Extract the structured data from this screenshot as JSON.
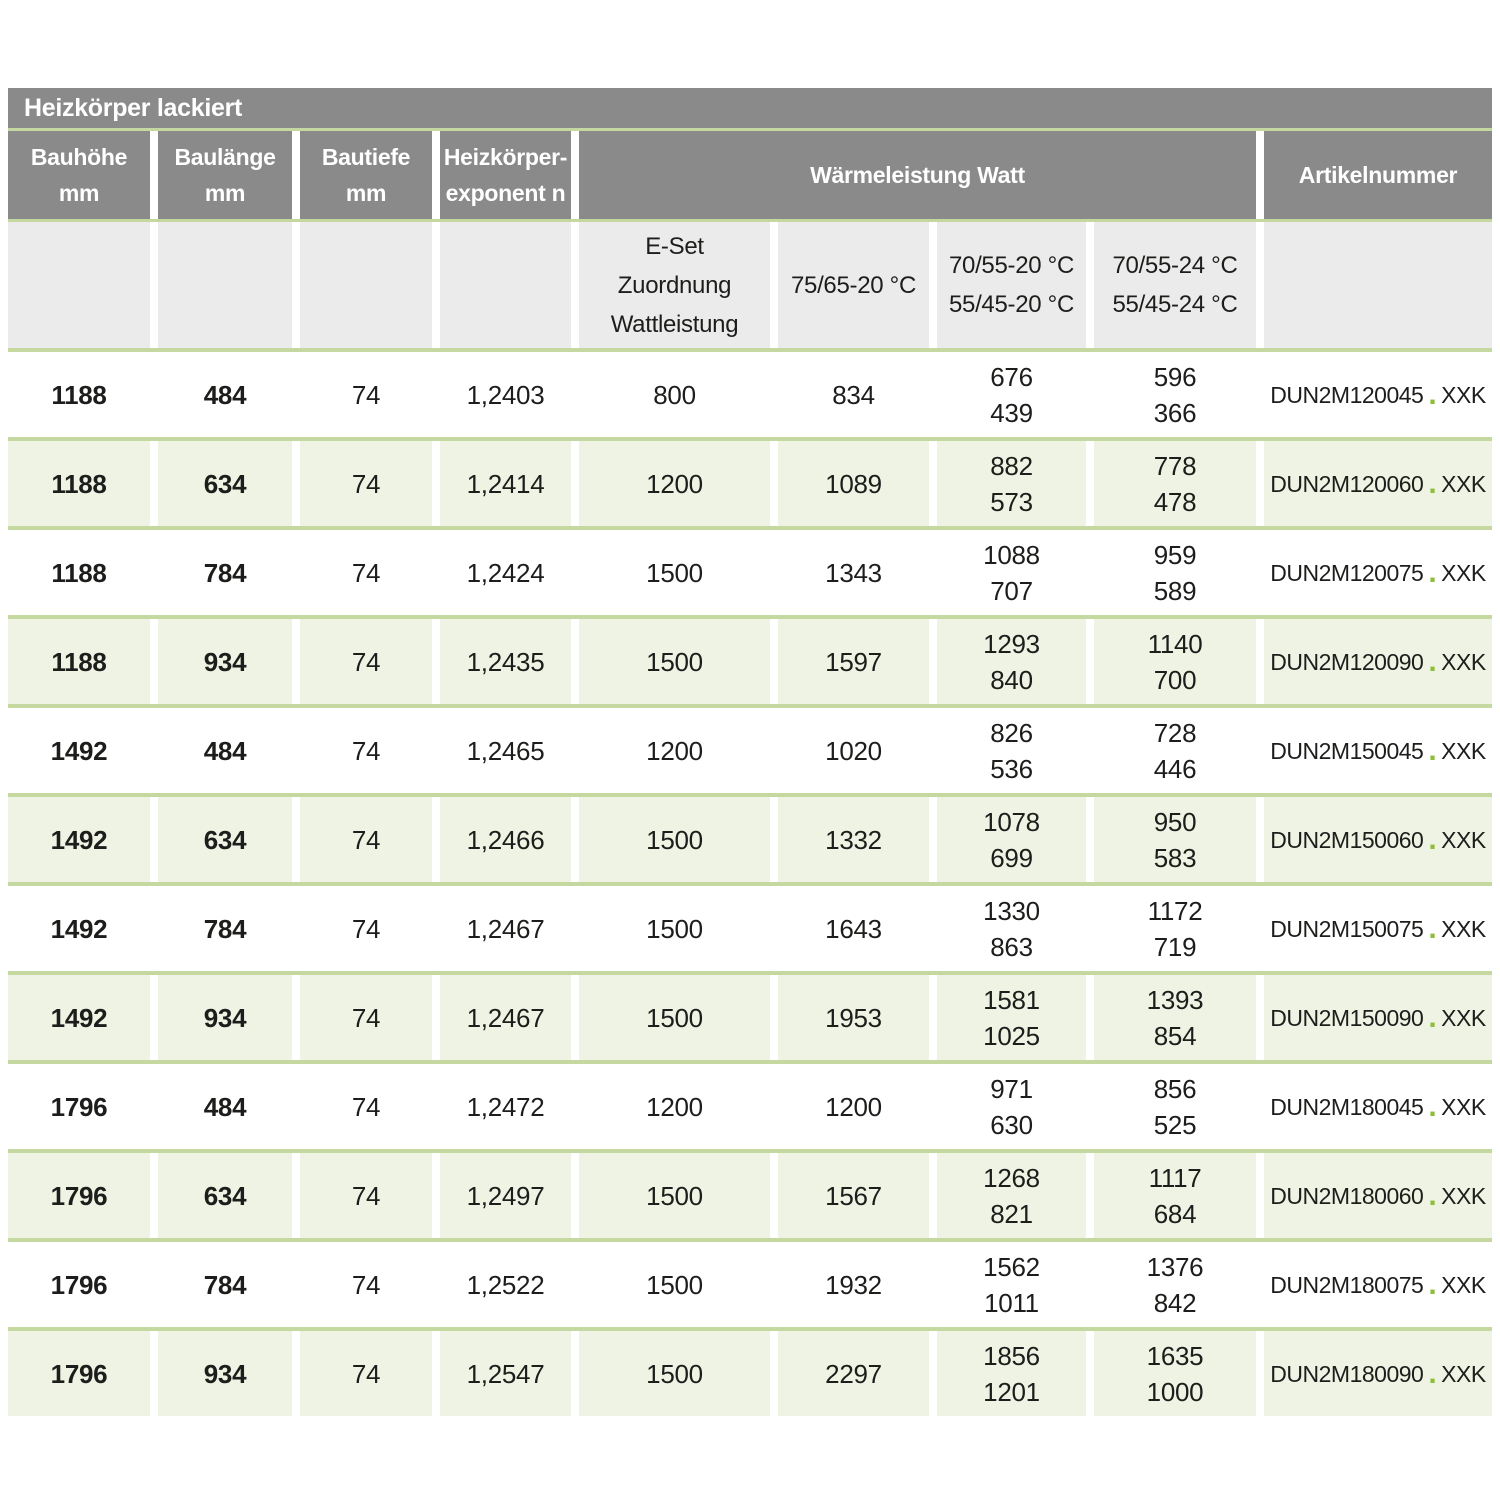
{
  "title": "Heizkörper lackiert",
  "colors": {
    "header_gray": "#8a8a8a",
    "subheader_gray": "#ebebeb",
    "row_white": "#ffffff",
    "row_green": "#eff3e4",
    "separator_green": "#c5d89f",
    "article_dot_green": "#8fbe3e",
    "text": "#1d1d1b"
  },
  "header": {
    "columns": [
      {
        "label": "Bauhöhe\nmm"
      },
      {
        "label": "Baulänge\nmm"
      },
      {
        "label": "Bautiefe\nmm"
      },
      {
        "label": "Heizkörper-\nexponent n"
      },
      {
        "label": "Wärmeleistung Watt"
      },
      {
        "label": "Artikelnummer"
      }
    ],
    "subcolumns": [
      {
        "label": "E-Set\nZuordnung\nWattleistung"
      },
      {
        "label": "75/65-20 °C"
      },
      {
        "label": "70/55-20 °C\n55/45-20 °C"
      },
      {
        "label": "70/55-24 °C\n55/45-24 °C"
      }
    ]
  },
  "article_dot": ".",
  "rows": [
    {
      "bauhoehe": "1188",
      "baulaenge": "484",
      "bautiefe": "74",
      "exponent": "1,2403",
      "eset_watt": "800",
      "watt_7565_20": "834",
      "watt_7055_20": "676\n439",
      "watt_7055_24": "596\n366",
      "artikelnummer": "DUN2M120045",
      "artikel_suffix": "XXK"
    },
    {
      "bauhoehe": "1188",
      "baulaenge": "634",
      "bautiefe": "74",
      "exponent": "1,2414",
      "eset_watt": "1200",
      "watt_7565_20": "1089",
      "watt_7055_20": "882\n573",
      "watt_7055_24": "778\n478",
      "artikelnummer": "DUN2M120060",
      "artikel_suffix": "XXK"
    },
    {
      "bauhoehe": "1188",
      "baulaenge": "784",
      "bautiefe": "74",
      "exponent": "1,2424",
      "eset_watt": "1500",
      "watt_7565_20": "1343",
      "watt_7055_20": "1088\n707",
      "watt_7055_24": "959\n589",
      "artikelnummer": "DUN2M120075",
      "artikel_suffix": "XXK"
    },
    {
      "bauhoehe": "1188",
      "baulaenge": "934",
      "bautiefe": "74",
      "exponent": "1,2435",
      "eset_watt": "1500",
      "watt_7565_20": "1597",
      "watt_7055_20": "1293\n840",
      "watt_7055_24": "1140\n700",
      "artikelnummer": "DUN2M120090",
      "artikel_suffix": "XXK"
    },
    {
      "bauhoehe": "1492",
      "baulaenge": "484",
      "bautiefe": "74",
      "exponent": "1,2465",
      "eset_watt": "1200",
      "watt_7565_20": "1020",
      "watt_7055_20": "826\n536",
      "watt_7055_24": "728\n446",
      "artikelnummer": "DUN2M150045",
      "artikel_suffix": "XXK"
    },
    {
      "bauhoehe": "1492",
      "baulaenge": "634",
      "bautiefe": "74",
      "exponent": "1,2466",
      "eset_watt": "1500",
      "watt_7565_20": "1332",
      "watt_7055_20": "1078\n699",
      "watt_7055_24": "950\n583",
      "artikelnummer": "DUN2M150060",
      "artikel_suffix": "XXK"
    },
    {
      "bauhoehe": "1492",
      "baulaenge": "784",
      "bautiefe": "74",
      "exponent": "1,2467",
      "eset_watt": "1500",
      "watt_7565_20": "1643",
      "watt_7055_20": "1330\n863",
      "watt_7055_24": "1172\n719",
      "artikelnummer": "DUN2M150075",
      "artikel_suffix": "XXK"
    },
    {
      "bauhoehe": "1492",
      "baulaenge": "934",
      "bautiefe": "74",
      "exponent": "1,2467",
      "eset_watt": "1500",
      "watt_7565_20": "1953",
      "watt_7055_20": "1581\n1025",
      "watt_7055_24": "1393\n854",
      "artikelnummer": "DUN2M150090",
      "artikel_suffix": "XXK"
    },
    {
      "bauhoehe": "1796",
      "baulaenge": "484",
      "bautiefe": "74",
      "exponent": "1,2472",
      "eset_watt": "1200",
      "watt_7565_20": "1200",
      "watt_7055_20": "971\n630",
      "watt_7055_24": "856\n525",
      "artikelnummer": "DUN2M180045",
      "artikel_suffix": "XXK"
    },
    {
      "bauhoehe": "1796",
      "baulaenge": "634",
      "bautiefe": "74",
      "exponent": "1,2497",
      "eset_watt": "1500",
      "watt_7565_20": "1567",
      "watt_7055_20": "1268\n821",
      "watt_7055_24": "1117\n684",
      "artikelnummer": "DUN2M180060",
      "artikel_suffix": "XXK"
    },
    {
      "bauhoehe": "1796",
      "baulaenge": "784",
      "bautiefe": "74",
      "exponent": "1,2522",
      "eset_watt": "1500",
      "watt_7565_20": "1932",
      "watt_7055_20": "1562\n1011",
      "watt_7055_24": "1376\n842",
      "artikelnummer": "DUN2M180075",
      "artikel_suffix": "XXK"
    },
    {
      "bauhoehe": "1796",
      "baulaenge": "934",
      "bautiefe": "74",
      "exponent": "1,2547",
      "eset_watt": "1500",
      "watt_7565_20": "2297",
      "watt_7055_20": "1856\n1201",
      "watt_7055_24": "1635\n1000",
      "artikelnummer": "DUN2M180090",
      "artikel_suffix": "XXK"
    }
  ]
}
